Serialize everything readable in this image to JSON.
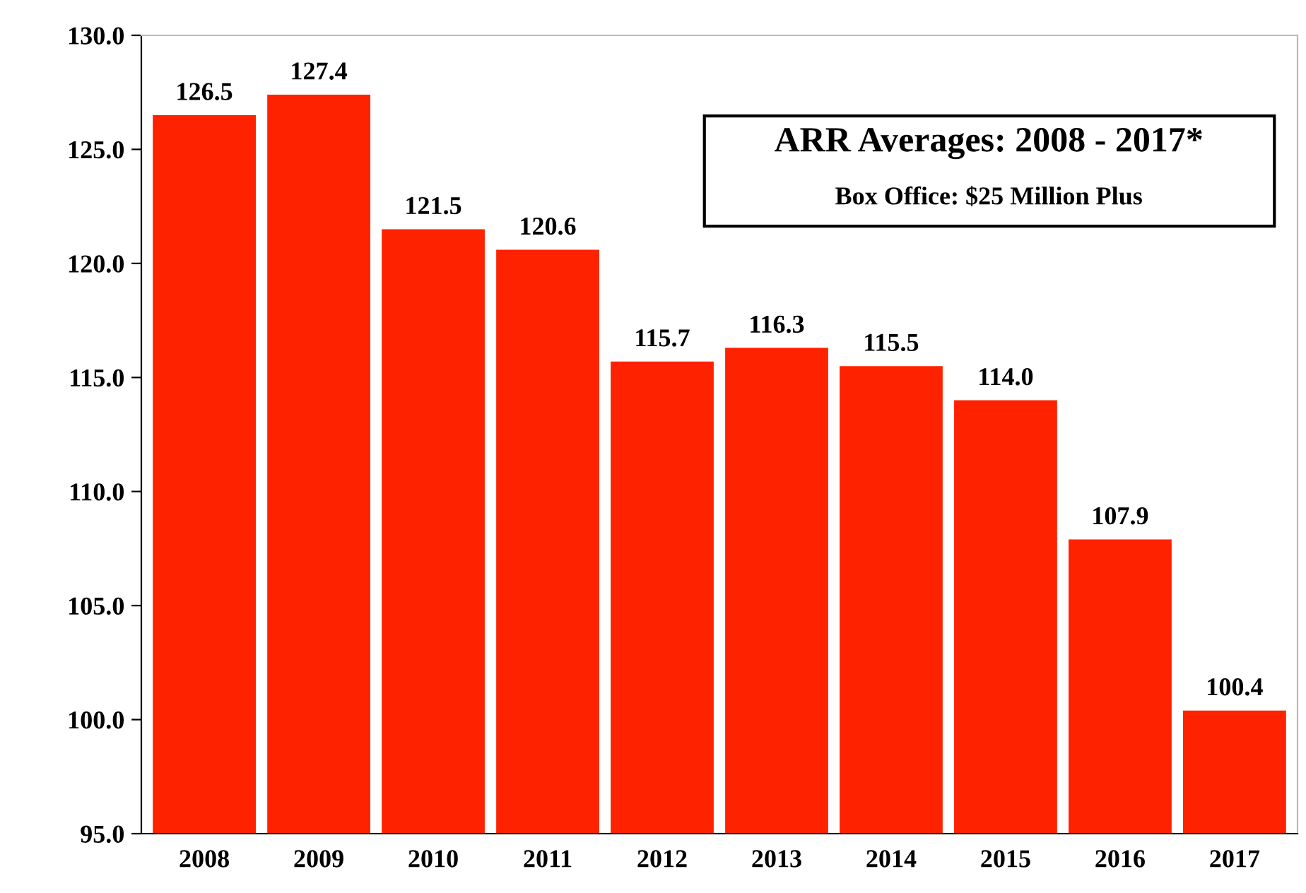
{
  "chart_data": {
    "type": "bar",
    "title": "ARR Averages: 2008 - 2017*",
    "subtitle": "Box Office: $25 Million Plus",
    "categories": [
      "2008",
      "2009",
      "2010",
      "2011",
      "2012",
      "2013",
      "2014",
      "2015",
      "2016",
      "2017"
    ],
    "values": [
      126.5,
      127.4,
      121.5,
      120.6,
      115.7,
      116.3,
      115.5,
      114.0,
      107.9,
      100.4
    ],
    "color": "#ff2200",
    "ylim": [
      95,
      130
    ],
    "yticks": [
      {
        "value": 95,
        "label": "95.0"
      },
      {
        "value": 100,
        "label": "100.0"
      },
      {
        "value": 105,
        "label": "105.0"
      },
      {
        "value": 110,
        "label": "110.0"
      },
      {
        "value": 115,
        "label": "115.0"
      },
      {
        "value": 120,
        "label": "120.0"
      },
      {
        "value": 125,
        "label": "125.0"
      },
      {
        "value": 130,
        "label": "130.0"
      }
    ],
    "value_labels": [
      "126.5",
      "127.4",
      "121.5",
      "120.6",
      "115.7",
      "116.3",
      "115.5",
      "114.0",
      "107.9",
      "100.4"
    ],
    "grid": false,
    "legend": false
  }
}
